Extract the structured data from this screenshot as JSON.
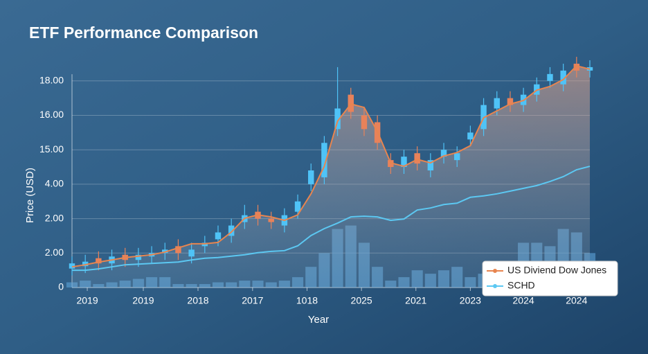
{
  "chart_data": {
    "type": "line",
    "title": "ETF Performance Comparison",
    "xlabel": "Year",
    "ylabel": "Price (USD)",
    "x": [
      0,
      1,
      2,
      3,
      4,
      5,
      6,
      7,
      8,
      9,
      10,
      11,
      12,
      13,
      14,
      15,
      16,
      17,
      18,
      19,
      20,
      21,
      22,
      23,
      24,
      25,
      26,
      27,
      28,
      29,
      30,
      31,
      32,
      33,
      34,
      35,
      36,
      37,
      38,
      39
    ],
    "xlim": [
      0,
      39
    ],
    "xticks": [
      {
        "value": 1.15,
        "label": "2019"
      },
      {
        "value": 5.37,
        "label": "2019"
      },
      {
        "value": 9.49,
        "label": "2018"
      },
      {
        "value": 13.6,
        "label": "2017"
      },
      {
        "value": 17.7,
        "label": "1018"
      },
      {
        "value": 21.8,
        "label": "2025"
      },
      {
        "value": 25.9,
        "label": "2021"
      },
      {
        "value": 30,
        "label": "2023"
      },
      {
        "value": 34,
        "label": "2024"
      },
      {
        "value": 38,
        "label": "2024"
      }
    ],
    "ylim": [
      0,
      7
    ],
    "yticks": [
      {
        "value": 0,
        "label": "0"
      },
      {
        "value": 1,
        "label": "2.00"
      },
      {
        "value": 2,
        "label": "2.00"
      },
      {
        "value": 3,
        "label": "4.00"
      },
      {
        "value": 4,
        "label": "15.00"
      },
      {
        "value": 5,
        "label": "16.00"
      },
      {
        "value": 6,
        "label": "18.00"
      }
    ],
    "grid": true,
    "legend": "lower right",
    "series": [
      {
        "name": "US Diviend Dow Jones",
        "color": "#e8854f",
        "values": [
          0.6,
          0.66,
          0.74,
          0.8,
          0.87,
          0.91,
          0.95,
          1.03,
          1.15,
          1.27,
          1.27,
          1.31,
          1.61,
          2.01,
          2.11,
          2.05,
          1.95,
          2.11,
          2.72,
          3.52,
          4.83,
          5.33,
          5.23,
          4.53,
          3.62,
          3.52,
          3.72,
          3.62,
          3.82,
          3.92,
          4.12,
          4.93,
          5.13,
          5.33,
          5.43,
          5.73,
          5.84,
          6.04,
          6.44,
          6.34
        ]
      },
      {
        "name": "SCHD",
        "color": "#5cc8f2",
        "values": [
          0.5,
          0.5,
          0.54,
          0.6,
          0.66,
          0.68,
          0.7,
          0.72,
          0.74,
          0.8,
          0.85,
          0.87,
          0.91,
          0.95,
          1.01,
          1.05,
          1.07,
          1.21,
          1.51,
          1.71,
          1.87,
          2.05,
          2.07,
          2.05,
          1.95,
          1.99,
          2.25,
          2.31,
          2.41,
          2.45,
          2.62,
          2.66,
          2.72,
          2.8,
          2.88,
          2.96,
          3.08,
          3.22,
          3.42,
          3.52
        ]
      }
    ],
    "candles": {
      "up_color": "#4fc3f7",
      "down_color": "#e8825a",
      "open": [
        0.55,
        0.62,
        0.85,
        0.7,
        0.95,
        0.8,
        0.9,
        1.0,
        1.2,
        0.9,
        1.2,
        1.4,
        1.5,
        1.9,
        2.2,
        2.0,
        1.8,
        2.2,
        3.0,
        3.2,
        4.6,
        5.6,
        5.0,
        4.8,
        3.7,
        3.5,
        3.9,
        3.4,
        3.8,
        3.7,
        4.3,
        4.6,
        5.2,
        5.5,
        5.3,
        5.6,
        6.0,
        5.9,
        6.5,
        6.3
      ],
      "high": [
        0.9,
        0.95,
        1.05,
        1.1,
        1.15,
        1.15,
        1.2,
        1.3,
        1.4,
        1.3,
        1.5,
        1.8,
        2.0,
        2.4,
        2.4,
        2.2,
        2.3,
        2.7,
        3.6,
        4.4,
        6.4,
        5.8,
        5.2,
        5.0,
        3.9,
        4.0,
        4.1,
        3.9,
        4.2,
        4.1,
        4.7,
        5.5,
        5.7,
        5.7,
        5.8,
        6.1,
        6.4,
        6.5,
        6.7,
        6.6
      ],
      "low": [
        0.35,
        0.42,
        0.5,
        0.5,
        0.6,
        0.6,
        0.7,
        0.8,
        0.8,
        0.7,
        1.0,
        1.2,
        1.3,
        1.7,
        1.8,
        1.7,
        1.6,
        2.0,
        2.8,
        3.0,
        4.4,
        4.9,
        4.4,
        4.0,
        3.3,
        3.3,
        3.4,
        3.2,
        3.6,
        3.5,
        4.1,
        4.4,
        5.0,
        5.1,
        5.1,
        5.4,
        5.8,
        5.7,
        6.1,
        6.1
      ],
      "close": [
        0.7,
        0.75,
        0.7,
        0.9,
        0.8,
        0.95,
        1.0,
        1.1,
        1.0,
        1.1,
        1.3,
        1.6,
        1.8,
        2.1,
        2.0,
        1.9,
        2.1,
        2.5,
        3.4,
        4.2,
        5.2,
        5.1,
        4.6,
        4.2,
        3.5,
        3.8,
        3.6,
        3.7,
        4.0,
        3.9,
        4.5,
        5.3,
        5.5,
        5.3,
        5.6,
        5.9,
        6.2,
        6.3,
        6.3,
        6.4
      ]
    },
    "volume": {
      "color": "#5ba3d9",
      "values": [
        0.15,
        0.2,
        0.1,
        0.15,
        0.2,
        0.25,
        0.3,
        0.3,
        0.1,
        0.1,
        0.1,
        0.15,
        0.15,
        0.2,
        0.2,
        0.15,
        0.2,
        0.3,
        0.6,
        1.0,
        1.7,
        1.8,
        1.3,
        0.6,
        0.2,
        0.3,
        0.5,
        0.4,
        0.5,
        0.6,
        0.3,
        0.4,
        0.3,
        0.4,
        1.3,
        1.3,
        1.2,
        1.7,
        1.6,
        1.0
      ]
    }
  }
}
